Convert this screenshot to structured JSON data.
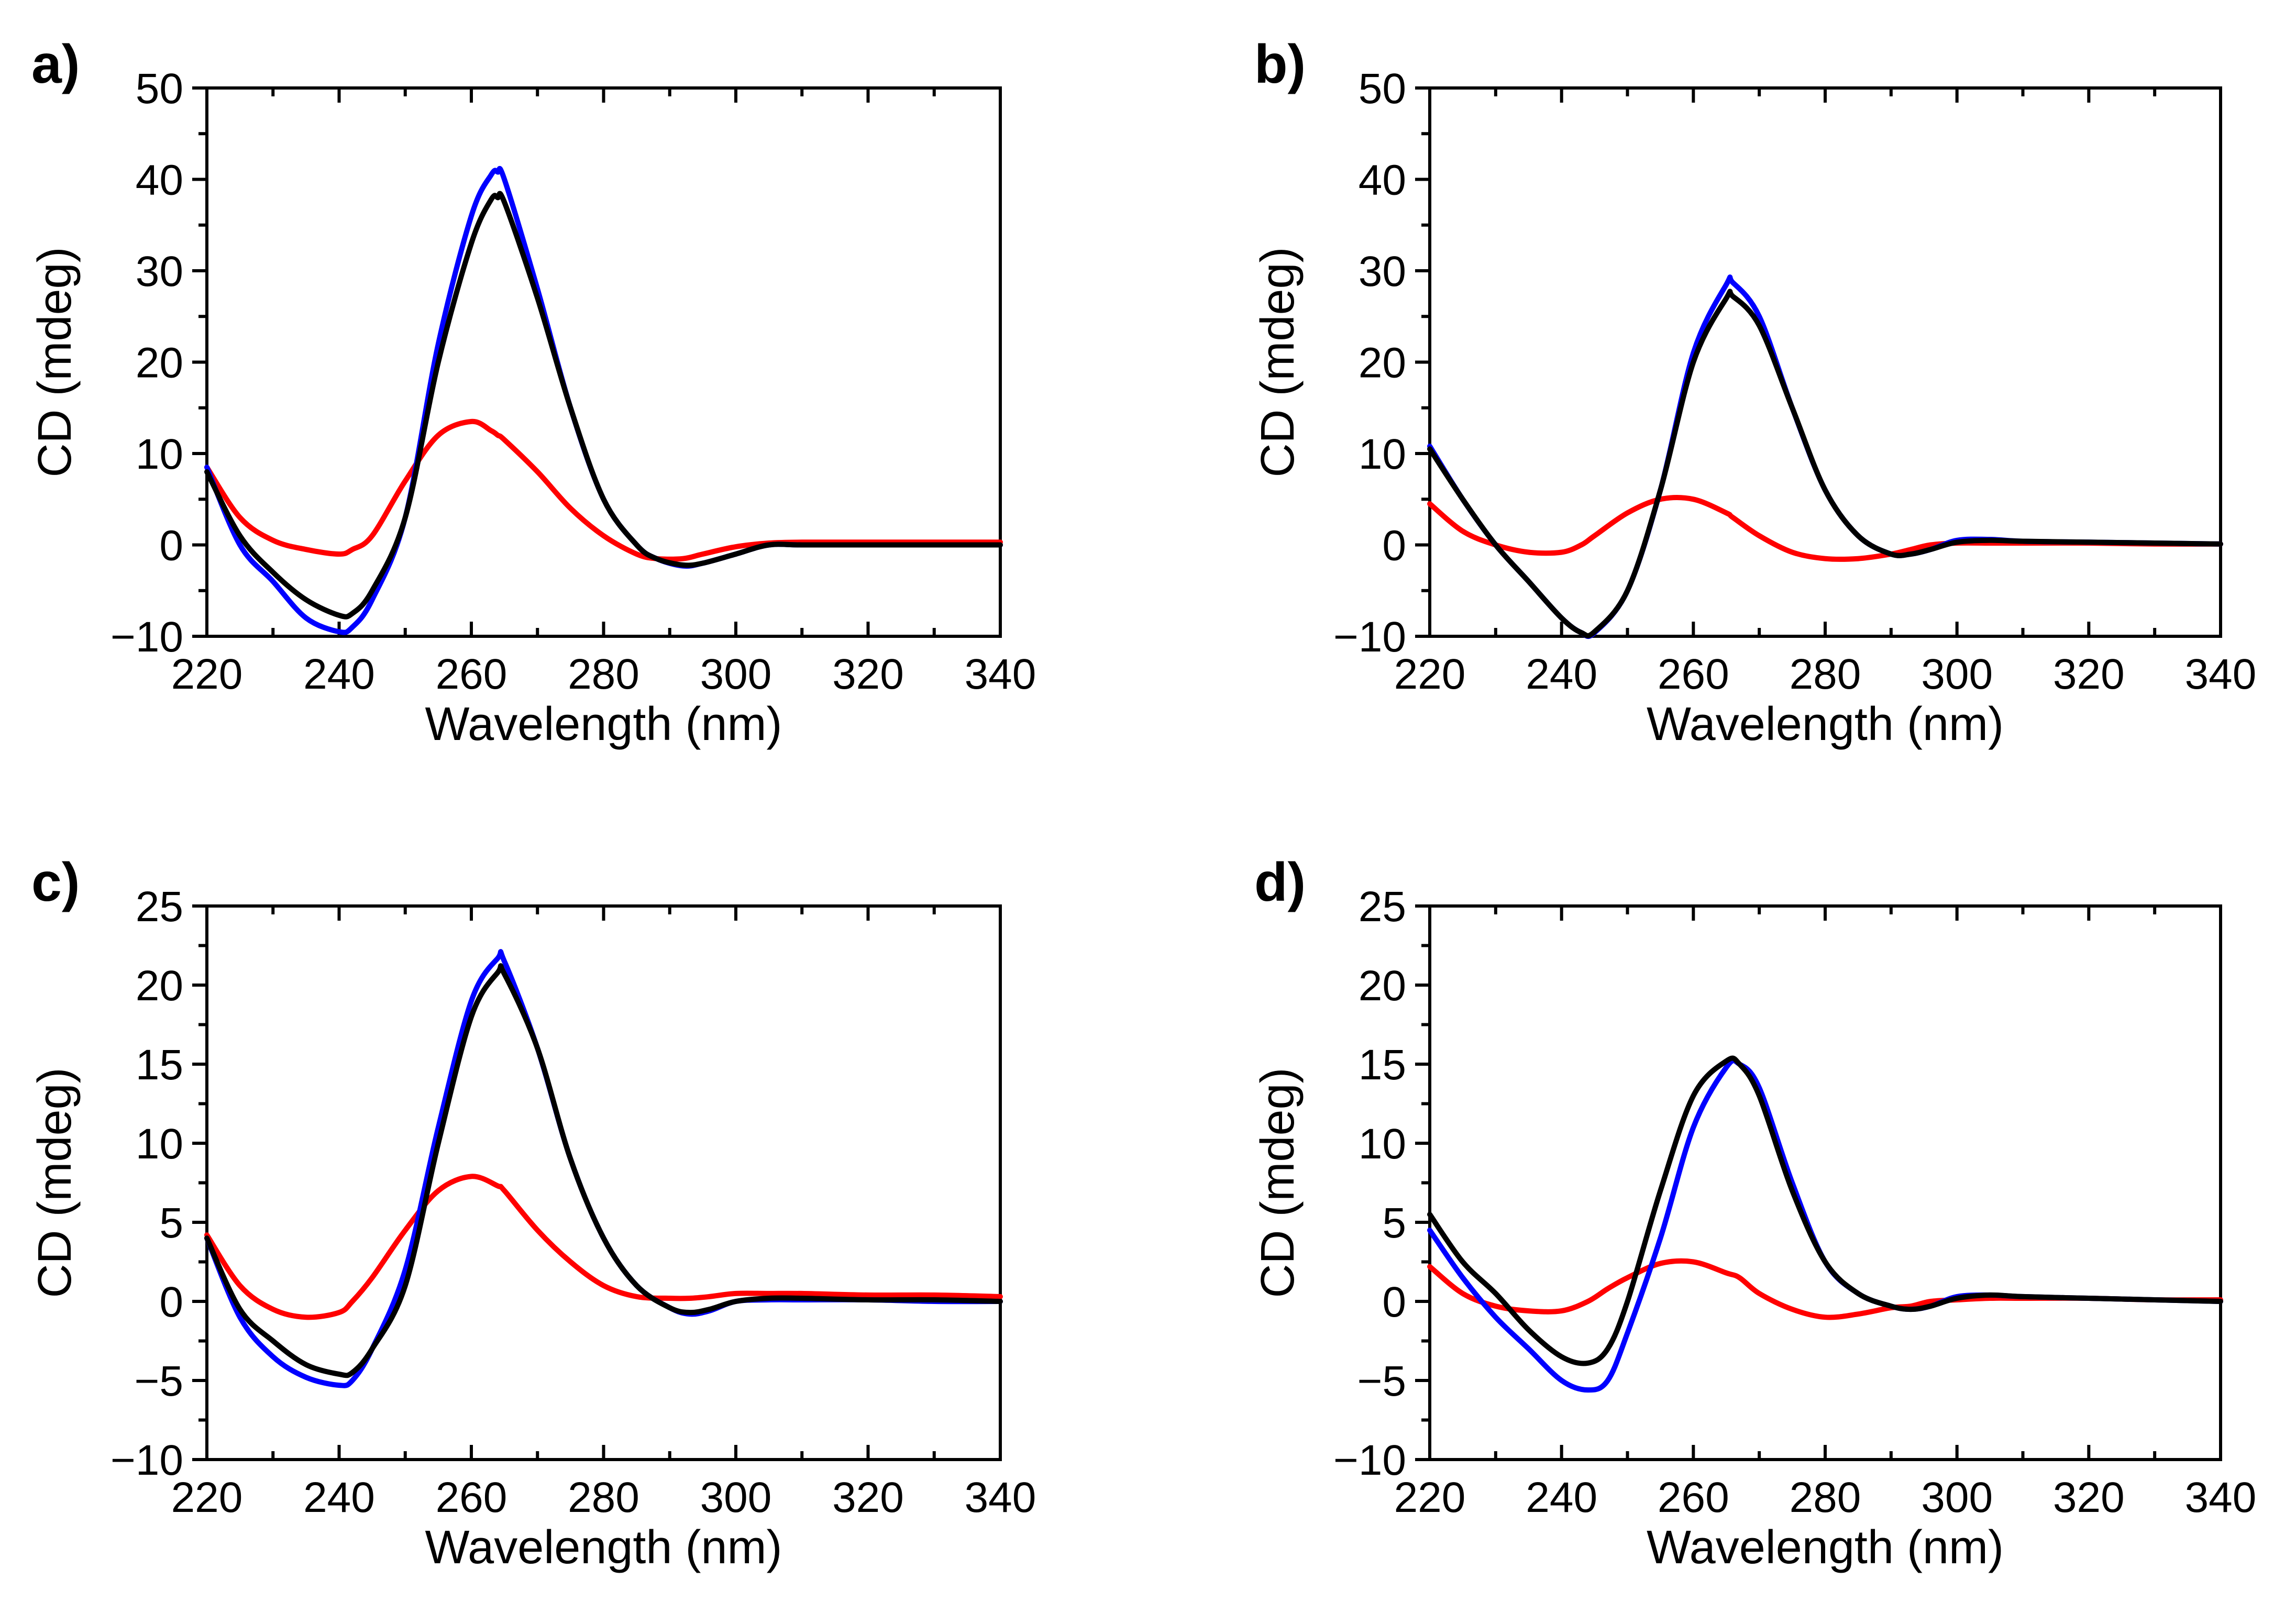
{
  "figure": {
    "xlabel": "Wavelength (nm)",
    "ylabel": "CD (mdeg)",
    "colors": {
      "black": "#000000",
      "red": "#ff0000",
      "blue": "#0000ff"
    }
  },
  "chart_data": [
    {
      "type": "line",
      "panel_label": "a)",
      "xlabel": "Wavelength (nm)",
      "ylabel": "CD (mdeg)",
      "xlim": [
        220,
        340
      ],
      "ylim": [
        -10,
        50
      ],
      "xticks": [
        220,
        240,
        260,
        280,
        300,
        320,
        340
      ],
      "xtick_labels": [
        "220",
        "240",
        "260",
        "280",
        "300",
        "320",
        "340"
      ],
      "yticks": [
        -10,
        0,
        10,
        20,
        30,
        40,
        50
      ],
      "ytick_labels": [
        "−10",
        "0",
        "10",
        "20",
        "30",
        "40",
        "50"
      ],
      "x": [
        220,
        225,
        230,
        235,
        240,
        242,
        245,
        250,
        255,
        260,
        263,
        264,
        265,
        270,
        275,
        280,
        285,
        288,
        292,
        295,
        300,
        305,
        310,
        320,
        330,
        340
      ],
      "series": [
        {
          "name": "black",
          "color": "#000000",
          "values": [
            8,
            1,
            -3,
            -6,
            -7.7,
            -7.5,
            -5,
            3,
            20,
            33,
            37.8,
            38,
            37.5,
            27,
            15,
            5,
            0,
            -1.5,
            -2.2,
            -2,
            -1,
            0,
            0,
            0,
            0,
            0
          ]
        },
        {
          "name": "red",
          "color": "#ff0000",
          "values": [
            8.5,
            3,
            0.5,
            -0.5,
            -1,
            -0.5,
            1,
            7,
            12,
            13.5,
            12.5,
            12,
            11.5,
            8,
            4,
            1,
            -1,
            -1.5,
            -1.5,
            -1,
            -0.2,
            0.2,
            0.3,
            0.3,
            0.3,
            0.3
          ]
        },
        {
          "name": "blue",
          "color": "#0000ff",
          "values": [
            8.5,
            0,
            -4,
            -8,
            -9.5,
            -9,
            -6,
            3,
            22,
            36,
            40.5,
            40.8,
            40,
            28,
            15,
            5,
            0,
            -1.5,
            -2.3,
            -2,
            -1,
            0,
            0,
            0,
            0,
            0
          ]
        }
      ]
    },
    {
      "type": "line",
      "panel_label": "b)",
      "xlabel": "Wavelength (nm)",
      "ylabel": "CD (mdeg)",
      "xlim": [
        220,
        340
      ],
      "ylim": [
        -10,
        50
      ],
      "xticks": [
        220,
        240,
        260,
        280,
        300,
        320,
        340
      ],
      "xtick_labels": [
        "220",
        "240",
        "260",
        "280",
        "300",
        "320",
        "340"
      ],
      "yticks": [
        -10,
        0,
        10,
        20,
        30,
        40,
        50
      ],
      "ytick_labels": [
        "−10",
        "0",
        "10",
        "20",
        "30",
        "40",
        "50"
      ],
      "x": [
        220,
        225,
        230,
        235,
        240,
        243,
        245,
        250,
        255,
        260,
        265,
        266,
        270,
        275,
        280,
        285,
        290,
        293,
        296,
        300,
        305,
        310,
        320,
        330,
        340
      ],
      "series": [
        {
          "name": "black",
          "color": "#000000",
          "values": [
            10.5,
            5,
            0,
            -4,
            -8,
            -9.6,
            -9.5,
            -5,
            6,
            20,
            27,
            27.2,
            24,
            15,
            6,
            1,
            -1,
            -1,
            -0.5,
            0.3,
            0.5,
            0.4,
            0.3,
            0.2,
            0.1
          ]
        },
        {
          "name": "red",
          "color": "#ff0000",
          "values": [
            4.5,
            1.5,
            0,
            -0.8,
            -0.8,
            0,
            1,
            3.5,
            5,
            5,
            3.5,
            3,
            1,
            -0.8,
            -1.5,
            -1.5,
            -1,
            -0.5,
            0,
            0.2,
            0.2,
            0.2,
            0.2,
            0.1,
            0.1
          ]
        },
        {
          "name": "blue",
          "color": "#0000ff",
          "values": [
            10.8,
            5,
            0,
            -4,
            -8,
            -9.6,
            -9.6,
            -5,
            6,
            21,
            28.5,
            28.7,
            25,
            15,
            6,
            1,
            -1,
            -1,
            -0.5,
            0.5,
            0.6,
            0.4,
            0.3,
            0.2,
            0.1
          ]
        }
      ]
    },
    {
      "type": "line",
      "panel_label": "c)",
      "xlabel": "Wavelength (nm)",
      "ylabel": "CD (mdeg)",
      "xlim": [
        220,
        340
      ],
      "ylim": [
        -10,
        25
      ],
      "xticks": [
        220,
        240,
        260,
        280,
        300,
        320,
        340
      ],
      "xtick_labels": [
        "220",
        "240",
        "260",
        "280",
        "300",
        "320",
        "340"
      ],
      "yticks": [
        -10,
        -5,
        0,
        5,
        10,
        15,
        20,
        25
      ],
      "ytick_labels": [
        "−10",
        "−5",
        "0",
        "5",
        "10",
        "15",
        "20",
        "25"
      ],
      "x": [
        220,
        225,
        230,
        235,
        240,
        242,
        245,
        250,
        255,
        260,
        264,
        265,
        270,
        275,
        280,
        285,
        290,
        293,
        296,
        300,
        305,
        310,
        320,
        330,
        340
      ],
      "series": [
        {
          "name": "black",
          "color": "#000000",
          "values": [
            4,
            -0.5,
            -2.5,
            -4,
            -4.6,
            -4.5,
            -3,
            1,
            10,
            18,
            20.8,
            20.7,
            16,
            9,
            4,
            1,
            -0.4,
            -0.7,
            -0.5,
            0,
            0.2,
            0.2,
            0.1,
            0.1,
            0
          ]
        },
        {
          "name": "red",
          "color": "#ff0000",
          "values": [
            4.2,
            1,
            -0.5,
            -1,
            -0.7,
            0,
            1.5,
            4.5,
            7,
            7.9,
            7.3,
            7,
            4.5,
            2.5,
            1,
            0.3,
            0.2,
            0.2,
            0.3,
            0.5,
            0.5,
            0.5,
            0.4,
            0.4,
            0.3
          ]
        },
        {
          "name": "blue",
          "color": "#0000ff",
          "values": [
            4,
            -1,
            -3.5,
            -4.8,
            -5.3,
            -5,
            -3,
            2,
            11,
            19,
            21.7,
            21.5,
            16,
            9,
            4,
            1,
            -0.4,
            -0.8,
            -0.6,
            0,
            0.1,
            0.1,
            0.1,
            0,
            0
          ]
        }
      ]
    },
    {
      "type": "line",
      "panel_label": "d)",
      "xlabel": "Wavelength (nm)",
      "ylabel": "CD (mdeg)",
      "xlim": [
        220,
        340
      ],
      "ylim": [
        -10,
        25
      ],
      "xticks": [
        220,
        240,
        260,
        280,
        300,
        320,
        340
      ],
      "xtick_labels": [
        "220",
        "240",
        "260",
        "280",
        "300",
        "320",
        "340"
      ],
      "yticks": [
        -10,
        -5,
        0,
        5,
        10,
        15,
        20,
        25
      ],
      "ytick_labels": [
        "−10",
        "−5",
        "0",
        "5",
        "10",
        "15",
        "20",
        "25"
      ],
      "x": [
        220,
        225,
        230,
        235,
        240,
        244,
        247,
        250,
        255,
        260,
        265,
        267,
        270,
        275,
        280,
        285,
        290,
        293,
        296,
        300,
        305,
        310,
        320,
        330,
        340
      ],
      "series": [
        {
          "name": "black",
          "color": "#000000",
          "values": [
            5.5,
            2.5,
            0.5,
            -1.8,
            -3.5,
            -3.9,
            -3,
            0,
            7,
            13,
            15.2,
            15,
            13,
            7,
            2.5,
            0.5,
            -0.3,
            -0.5,
            -0.3,
            0.2,
            0.4,
            0.3,
            0.2,
            0.1,
            0
          ]
        },
        {
          "name": "red",
          "color": "#ff0000",
          "values": [
            2.2,
            0.5,
            -0.3,
            -0.6,
            -0.6,
            0,
            0.8,
            1.5,
            2.4,
            2.5,
            1.8,
            1.5,
            0.5,
            -0.5,
            -1,
            -0.8,
            -0.4,
            -0.3,
            0,
            0.1,
            0.2,
            0.2,
            0.2,
            0.1,
            0.1
          ]
        },
        {
          "name": "blue",
          "color": "#0000ff",
          "values": [
            4.5,
            1.5,
            -1,
            -3,
            -5,
            -5.6,
            -5,
            -2,
            4,
            11,
            14.8,
            15,
            13.5,
            7.5,
            2.5,
            0.5,
            -0.3,
            -0.5,
            -0.3,
            0.3,
            0.4,
            0.3,
            0.2,
            0.1,
            0
          ]
        }
      ]
    }
  ]
}
